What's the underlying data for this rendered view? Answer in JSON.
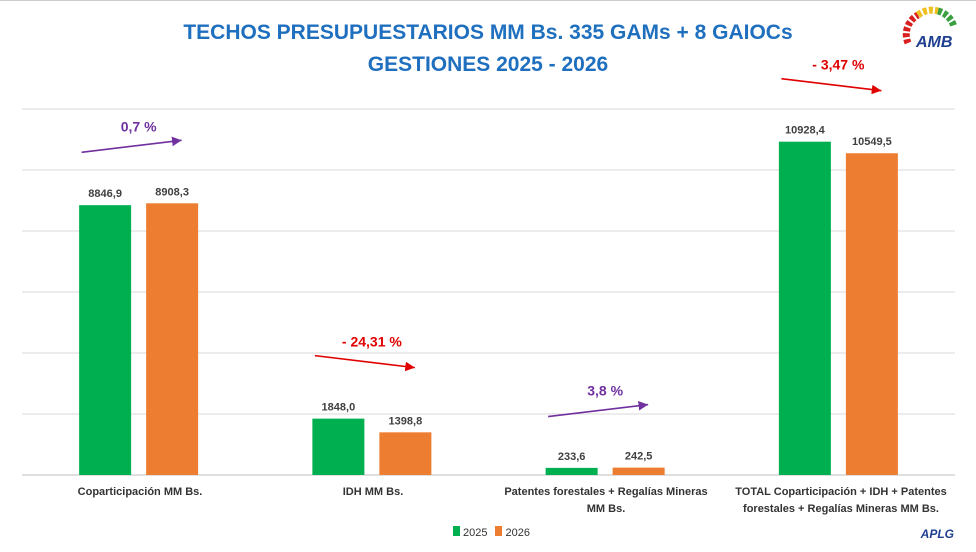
{
  "chart_data": {
    "type": "bar",
    "title": "TECHOS PRESUPUESTARIOS MM Bs. 335 GAMs + 8 GAIOCs",
    "subtitle": "GESTIONES 2025 - 2026",
    "categories": [
      "Coparticipación MM Bs.",
      "IDH MM Bs.",
      "Patentes forestales + Regalías Mineras MM Bs.",
      "TOTAL Coparticipación + IDH + Patentes forestales + Regalías Mineras MM Bs."
    ],
    "series": [
      {
        "name": "2025",
        "color": "#00b050",
        "values": [
          8846.9,
          1848.0,
          233.6,
          10928.4
        ],
        "labels": [
          "8846,9",
          "1848,0",
          "233,6",
          "10928,4"
        ]
      },
      {
        "name": "2026",
        "color": "#ed7d31",
        "values": [
          8908.3,
          1398.8,
          242.5,
          10549.5
        ],
        "labels": [
          "8908,3",
          "1398,8",
          "242,5",
          "10549,5"
        ]
      }
    ],
    "annotations": [
      {
        "text": "0,7 %",
        "direction": "up",
        "color": "#7030a0"
      },
      {
        "text": "- 24,31 %",
        "direction": "down",
        "color": "#e00000"
      },
      {
        "text": "3,8 %",
        "direction": "up",
        "color": "#7030a0"
      },
      {
        "text": "- 3,47 %",
        "direction": "down",
        "color": "#e00000"
      }
    ],
    "ylim": [
      0,
      12000
    ],
    "grid": true,
    "legend": "bottom"
  },
  "logo_text": "AMB",
  "footer": "APLG"
}
